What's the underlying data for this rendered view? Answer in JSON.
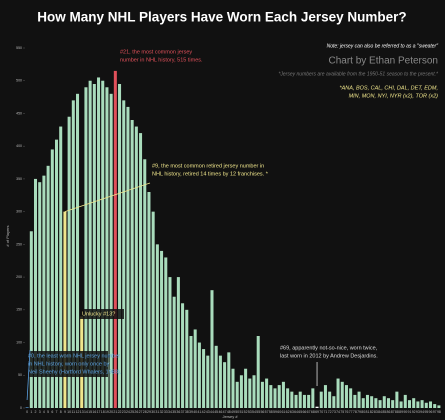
{
  "chart_data": {
    "type": "bar",
    "title": "How Many NHL Players Have Worn Each Jersey Number?",
    "note": "Note: jersey can also be referred to as a \"sweater\"",
    "credit": "Chart by Ethan Peterson",
    "subtitle": "*Jersey numbers are available from the 1950-51 season to the present.*",
    "teams": [
      "*ANA, BOS, CAL, CHI, DAL, DET, EDM,",
      "MIN, MON, NYI, NYR (x2), TOR (x2)"
    ],
    "xlabel": "Jersey #",
    "ylabel": "# of Players",
    "categories": [
      "0",
      "1",
      "2",
      "3",
      "4",
      "5",
      "6",
      "7",
      "8",
      "9",
      "10",
      "11",
      "12",
      "13",
      "14",
      "15",
      "16",
      "17",
      "18",
      "19",
      "20",
      "21",
      "22",
      "23",
      "24",
      "25",
      "26",
      "27",
      "28",
      "29",
      "30",
      "31",
      "32",
      "33",
      "34",
      "35",
      "36",
      "37",
      "38",
      "39",
      "40",
      "41",
      "42",
      "43",
      "44",
      "45",
      "46",
      "47",
      "48",
      "49",
      "50",
      "51",
      "52",
      "53",
      "54",
      "55",
      "56",
      "57",
      "58",
      "59",
      "60",
      "61",
      "62",
      "63",
      "64",
      "65",
      "66",
      "67",
      "68",
      "69",
      "70",
      "71",
      "72",
      "73",
      "74",
      "75",
      "76",
      "77",
      "78",
      "79",
      "80",
      "81",
      "82",
      "83",
      "84",
      "85",
      "86",
      "87",
      "88",
      "89",
      "90",
      "91",
      "92",
      "93",
      "94",
      "95",
      "96",
      "97",
      "98"
    ],
    "values": [
      1,
      270,
      350,
      345,
      355,
      370,
      395,
      410,
      430,
      300,
      445,
      470,
      480,
      140,
      490,
      500,
      495,
      505,
      500,
      490,
      480,
      515,
      495,
      470,
      460,
      440,
      430,
      420,
      380,
      330,
      300,
      250,
      240,
      230,
      200,
      170,
      200,
      160,
      150,
      110,
      120,
      100,
      90,
      80,
      180,
      95,
      80,
      70,
      85,
      60,
      40,
      50,
      60,
      45,
      50,
      110,
      40,
      45,
      35,
      30,
      35,
      40,
      30,
      25,
      20,
      25,
      20,
      20,
      30,
      2,
      25,
      35,
      25,
      18,
      45,
      40,
      35,
      30,
      20,
      25,
      15,
      20,
      18,
      15,
      12,
      18,
      15,
      12,
      25,
      10,
      20,
      12,
      15,
      10,
      12,
      8,
      10,
      6,
      4
    ],
    "color": "#a9dcbc",
    "colors": {
      "0": "#5aa0e0",
      "9": "#f0e68c",
      "13": "#f0e68c",
      "21": "#e0505a",
      "69": "#ffffff"
    },
    "ylim": [
      0,
      550
    ],
    "yticks": [
      0,
      50,
      100,
      150,
      200,
      250,
      300,
      350,
      400,
      450,
      500,
      550
    ],
    "annotations": [
      {
        "lines": [
          "#21, the most common jersey",
          "number in NHL history, 515 times."
        ],
        "color": "#e0505a"
      },
      {
        "lines": [
          "#9, the most common retired jersey number in",
          "NHL history, retired 14 times by 12 franchises. *"
        ],
        "color": "#f0e68c"
      },
      {
        "lines": [
          "Unlucky #13?"
        ],
        "color": "#f0e68c"
      },
      {
        "lines": [
          "#0, the least worn NHL jersey number",
          "in NHL history, worn only once by",
          "Neil Sheehy (Hartford Whalers, 1988)."
        ],
        "color": "#5aa0e0"
      },
      {
        "lines": [
          "#69, apparently not-so-nice, worn twice,",
          "last worn in 2012 by Andrew Desjardins."
        ],
        "color": "#ddd"
      }
    ]
  }
}
